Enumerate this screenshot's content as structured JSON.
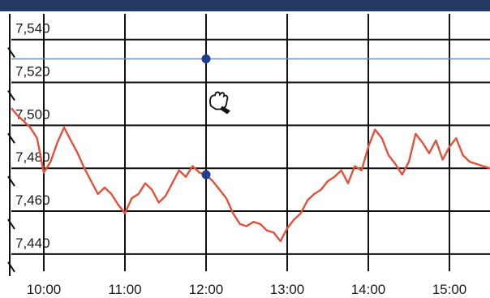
{
  "chart_data": {
    "type": "line",
    "title": "",
    "xlabel": "",
    "ylabel": "",
    "x_ticks": [
      "10:00",
      "11:00",
      "12:00",
      "13:00",
      "14:00",
      "15:00"
    ],
    "y_ticks": [
      "7,440",
      "7,460",
      "7,480",
      "7,500",
      "7,520",
      "7,540"
    ],
    "xlim": [
      "09:36",
      "15:30"
    ],
    "ylim": [
      7432,
      7552
    ],
    "grid": true,
    "series": [
      {
        "name": "",
        "color": "#e4503a",
        "x": [
          "09:36",
          "09:40",
          "09:45",
          "09:50",
          "09:55",
          "10:00",
          "10:05",
          "10:10",
          "10:15",
          "10:20",
          "10:25",
          "10:30",
          "10:35",
          "10:40",
          "10:45",
          "10:50",
          "10:55",
          "11:00",
          "11:05",
          "11:10",
          "11:15",
          "11:20",
          "11:25",
          "11:30",
          "11:35",
          "11:40",
          "11:45",
          "11:50",
          "11:55",
          "12:00",
          "12:05",
          "12:10",
          "12:15",
          "12:20",
          "12:25",
          "12:30",
          "12:35",
          "12:40",
          "12:45",
          "12:50",
          "12:55",
          "13:00",
          "13:05",
          "13:10",
          "13:15",
          "13:20",
          "13:25",
          "13:30",
          "13:35",
          "13:40",
          "13:45",
          "13:50",
          "13:55",
          "14:00",
          "14:05",
          "14:10",
          "14:15",
          "14:20",
          "14:25",
          "14:30",
          "14:35",
          "14:40",
          "14:45",
          "14:50",
          "14:55",
          "15:00",
          "15:05",
          "15:10",
          "15:15",
          "15:20",
          "15:25",
          "15:30"
        ],
        "values": [
          7508,
          7505,
          7502,
          7499,
          7494,
          7478,
          7483,
          7492,
          7499,
          7493,
          7487,
          7480,
          7474,
          7468,
          7471,
          7468,
          7463,
          7459,
          7466,
          7468,
          7473,
          7470,
          7464,
          7467,
          7473,
          7479,
          7476,
          7481,
          7478,
          7477,
          7474,
          7470,
          7466,
          7459,
          7454,
          7453,
          7455,
          7454,
          7451,
          7450,
          7446,
          7452,
          7456,
          7459,
          7465,
          7468,
          7470,
          7474,
          7476,
          7479,
          7473,
          7481,
          7479,
          7490,
          7498,
          7494,
          7486,
          7482,
          7477,
          7483,
          7496,
          7492,
          7487,
          7493,
          7484,
          7490,
          7494,
          7486,
          7483,
          7482,
          7481,
          7480
        ]
      }
    ],
    "crosshair": {
      "x": "12:00",
      "y": 7531,
      "marker_color": "#1d3f8c"
    }
  }
}
